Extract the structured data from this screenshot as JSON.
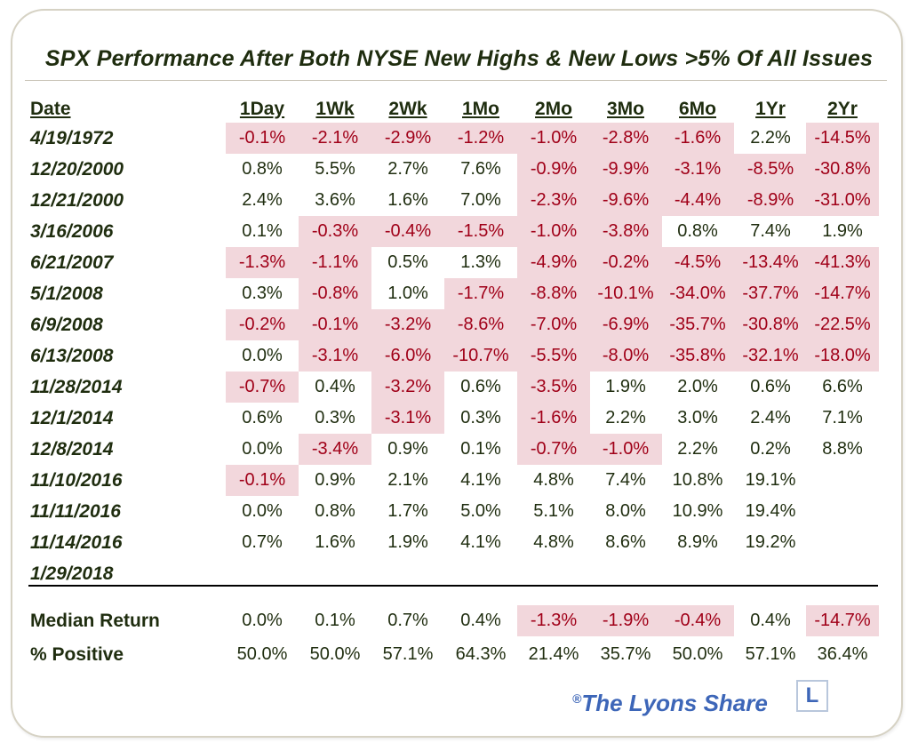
{
  "chart_data": {
    "type": "table",
    "title": "SPX Performance After Both NYSE New Highs & New Lows >5% Of All Issues",
    "date_header": "Date",
    "columns": [
      "1Day",
      "1Wk",
      "2Wk",
      "1Mo",
      "2Mo",
      "3Mo",
      "6Mo",
      "1Yr",
      "2Yr"
    ],
    "rows": [
      {
        "date": "4/19/1972",
        "values": [
          "-0.1%",
          "-2.1%",
          "-2.9%",
          "-1.2%",
          "-1.0%",
          "-2.8%",
          "-1.6%",
          "2.2%",
          "-14.5%"
        ]
      },
      {
        "date": "12/20/2000",
        "values": [
          "0.8%",
          "5.5%",
          "2.7%",
          "7.6%",
          "-0.9%",
          "-9.9%",
          "-3.1%",
          "-8.5%",
          "-30.8%"
        ]
      },
      {
        "date": "12/21/2000",
        "values": [
          "2.4%",
          "3.6%",
          "1.6%",
          "7.0%",
          "-2.3%",
          "-9.6%",
          "-4.4%",
          "-8.9%",
          "-31.0%"
        ]
      },
      {
        "date": "3/16/2006",
        "values": [
          "0.1%",
          "-0.3%",
          "-0.4%",
          "-1.5%",
          "-1.0%",
          "-3.8%",
          "0.8%",
          "7.4%",
          "1.9%"
        ]
      },
      {
        "date": "6/21/2007",
        "values": [
          "-1.3%",
          "-1.1%",
          "0.5%",
          "1.3%",
          "-4.9%",
          "-0.2%",
          "-4.5%",
          "-13.4%",
          "-41.3%"
        ]
      },
      {
        "date": "5/1/2008",
        "values": [
          "0.3%",
          "-0.8%",
          "1.0%",
          "-1.7%",
          "-8.8%",
          "-10.1%",
          "-34.0%",
          "-37.7%",
          "-14.7%"
        ]
      },
      {
        "date": "6/9/2008",
        "values": [
          "-0.2%",
          "-0.1%",
          "-3.2%",
          "-8.6%",
          "-7.0%",
          "-6.9%",
          "-35.7%",
          "-30.8%",
          "-22.5%"
        ]
      },
      {
        "date": "6/13/2008",
        "values": [
          "0.0%",
          "-3.1%",
          "-6.0%",
          "-10.7%",
          "-5.5%",
          "-8.0%",
          "-35.8%",
          "-32.1%",
          "-18.0%"
        ]
      },
      {
        "date": "11/28/2014",
        "values": [
          "-0.7%",
          "0.4%",
          "-3.2%",
          "0.6%",
          "-3.5%",
          "1.9%",
          "2.0%",
          "0.6%",
          "6.6%"
        ]
      },
      {
        "date": "12/1/2014",
        "values": [
          "0.6%",
          "0.3%",
          "-3.1%",
          "0.3%",
          "-1.6%",
          "2.2%",
          "3.0%",
          "2.4%",
          "7.1%"
        ]
      },
      {
        "date": "12/8/2014",
        "values": [
          "0.0%",
          "-3.4%",
          "0.9%",
          "0.1%",
          "-0.7%",
          "-1.0%",
          "2.2%",
          "0.2%",
          "8.8%"
        ]
      },
      {
        "date": "11/10/2016",
        "values": [
          "-0.1%",
          "0.9%",
          "2.1%",
          "4.1%",
          "4.8%",
          "7.4%",
          "10.8%",
          "19.1%",
          ""
        ]
      },
      {
        "date": "11/11/2016",
        "values": [
          "0.0%",
          "0.8%",
          "1.7%",
          "5.0%",
          "5.1%",
          "8.0%",
          "10.9%",
          "19.4%",
          ""
        ]
      },
      {
        "date": "11/14/2016",
        "values": [
          "0.7%",
          "1.6%",
          "1.9%",
          "4.1%",
          "4.8%",
          "8.6%",
          "8.9%",
          "19.2%",
          ""
        ]
      },
      {
        "date": "1/29/2018",
        "values": [
          "",
          "",
          "",
          "",
          "",
          "",
          "",
          "",
          ""
        ]
      }
    ],
    "summary": [
      {
        "label": "Median Return",
        "values": [
          "0.0%",
          "0.1%",
          "0.7%",
          "0.4%",
          "-1.3%",
          "-1.9%",
          "-0.4%",
          "0.4%",
          "-14.7%"
        ]
      },
      {
        "label": "% Positive",
        "values": [
          "50.0%",
          "50.0%",
          "57.1%",
          "64.3%",
          "21.4%",
          "35.7%",
          "50.0%",
          "57.1%",
          "36.4%"
        ]
      }
    ]
  },
  "brand": {
    "registered": "®",
    "name": "The Lyons Share",
    "logo_letter": "L"
  },
  "colors": {
    "negative_text": "#a00018",
    "negative_fill": "#f2d7dc",
    "text": "#1f2d0f",
    "brand": "#3d66b8"
  }
}
